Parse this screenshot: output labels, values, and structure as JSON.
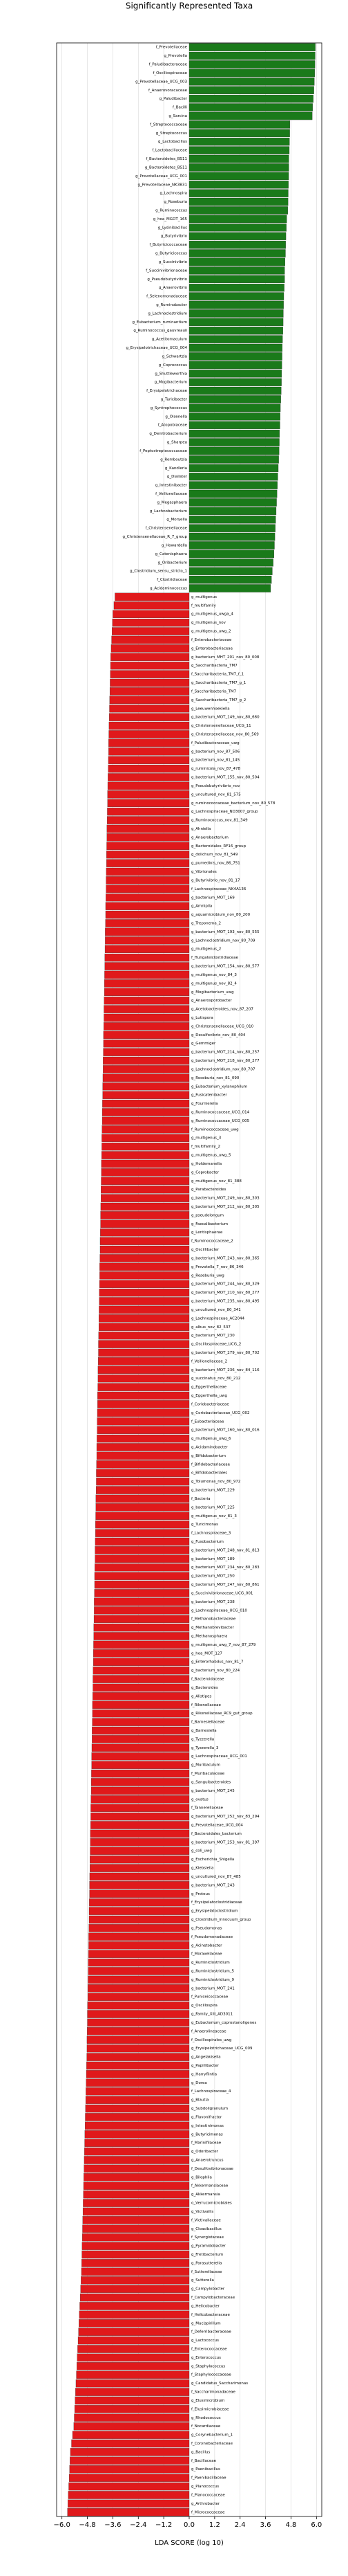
{
  "chart_data": {
    "type": "diverging-bar",
    "title": "Significantly Represented Taxa",
    "xlabel": "LDA SCORE (log 10)",
    "xlim": [
      -6.25,
      6.25
    ],
    "xticks": [
      {
        "value": -6,
        "label": "−6.0"
      },
      {
        "value": -4.8,
        "label": "−4.8"
      },
      {
        "value": -3.6,
        "label": "−3.6"
      },
      {
        "value": -2.4,
        "label": "−2.4"
      },
      {
        "value": -1.2,
        "label": "−1.2"
      },
      {
        "value": 0,
        "label": "0.0"
      },
      {
        "value": 1.2,
        "label": "1.2"
      },
      {
        "value": 2.4,
        "label": "2.4"
      },
      {
        "value": 3.6,
        "label": "3.6"
      },
      {
        "value": 4.8,
        "label": "4.8"
      },
      {
        "value": 6,
        "label": "6.0"
      }
    ],
    "grid": true,
    "series": [
      {
        "color": "#1a7a1a",
        "categories": [
          "f_Prevotellaceae",
          "g_Prevotella",
          "f_Paludibacteraceae",
          "f_Oscillospiraceae",
          "g_Prevotellaceae_UCG_003",
          "f_Anaerovoracaceae",
          "g_Paludibacter",
          "f_Bacilli",
          "g_Sarcina",
          "f_Streptococcaceae",
          "g_Streptococcus",
          "g_Lactobacillus",
          "f_Lactobacillaceae",
          "f_Bacteroidetes_BS11",
          "g_Bacteroidetes_BS11",
          "g_Prevotellaceae_UCG_001",
          "g_Prevotellaceae_NK3B31",
          "g_Lachnospira",
          "g_Roseburia",
          "g_Ruminococcus",
          "g_hoa_MGOT_165",
          "g_Lysinibacillus",
          "g_Butyrivibrio",
          "f_Butyricicoccaceae",
          "g_Butyricicoccus",
          "g_Succinivibrio",
          "f_Succinivibrionaceae",
          "g_Pseudobutyrivibrio",
          "g_Anaerovibrio",
          "f_Selenomonadaceae",
          "g_Ruminobacter",
          "g_Lachnoclostridium",
          "g_Eubacterium_ruminantium",
          "g_Ruminococcus_gauvreauii",
          "g_Acetitomaculum",
          "g_Erysipelotrichaceae_UCG_004",
          "g_Schwartzia",
          "g_Coprococcus",
          "g_Shuttleworthia",
          "g_Mogibacterium",
          "f_Erysipelotrichaceae",
          "g_Turicibacter",
          "g_Syntrophococcus",
          "g_Olsenella",
          "f_Atopobiaceae",
          "g_Denitrobacterium",
          "g_Sharpea",
          "f_Peptostreptococcaceae",
          "g_Romboutsia",
          "g_Kandleria",
          "g_Dialister",
          "g_Intestinibacter",
          "f_Veillonellaceae",
          "g_Megasphaera",
          "g_Lachnobacterium",
          "g_Moryella",
          "f_Christensenellaceae",
          "g_Christensenellaceae_R_7_group",
          "g_Howardella",
          "g_Catenisphaera",
          "g_Oribacterium",
          "g_Clostridium_sensu_stricto_1",
          "f_Clostridiaceae",
          "g_Acidaminococcus"
        ],
        "values": [
          5.95,
          5.94,
          5.93,
          5.92,
          5.9,
          5.88,
          5.85,
          5.82,
          5.8,
          4.75,
          4.74,
          4.73,
          4.72,
          4.7,
          4.7,
          4.69,
          4.68,
          4.67,
          4.66,
          4.65,
          4.6,
          4.58,
          4.56,
          4.55,
          4.54,
          4.52,
          4.5,
          4.5,
          4.48,
          4.46,
          4.45,
          4.44,
          4.43,
          4.42,
          4.4,
          4.39,
          4.38,
          4.37,
          4.36,
          4.35,
          4.34,
          4.32,
          4.3,
          4.29,
          4.28,
          4.26,
          4.25,
          4.24,
          4.22,
          4.2,
          4.18,
          4.16,
          4.14,
          4.12,
          4.1,
          4.08,
          4.06,
          4.04,
          4.02,
          4.0,
          3.96,
          3.92,
          3.88,
          3.84
        ]
      },
      {
        "color": "#e0191b",
        "categories": [
          "g_multigenus",
          "f_multifamily",
          "g_multigenus_uwga_4",
          "g_multigenus_nov",
          "g_multigenus_uwg_2",
          "f_Enterobacteriaceae",
          "g_Enterobacteriaceae",
          "g_bacterium_MHT_201_nov_80_008",
          "g_Saccharibacteria_TM7",
          "f_Saccharibacteria_TM7_f_1",
          "g_Saccharibacteria_TM7_g_1",
          "f_Saccharibacteria_TM7",
          "g_Saccharibacteria_TM7_g_2",
          "g_Leeuwenhoekiella",
          "g_bacterium_MOT_149_nov_80_660",
          "g_Christensenellaceae_UCG_11",
          "g_Christensenellaceae_nov_80_569",
          "f_Paludibacteraceae_uwg",
          "g_bacterium_nov_87_506",
          "g_bacterium_nov_81_145",
          "g_ruminicola_nov_87_478",
          "g_bacterium_MOT_155_nov_80_504",
          "g_Pseudobutyrivibrio_nov",
          "g_uncultured_nov_81_575",
          "g_ruminococcaceae_bacterium_nov_80_578",
          "g_Lachnospiraceae_ND3007_group",
          "g_Ruminococcus_nov_81_349",
          "g_Ahniella",
          "g_Anaerobacterium",
          "g_Bacteroidales_RF16_group",
          "g_dolichum_nov_81_549",
          "g_pumedinis_nov_86_751",
          "g_Vibrionales",
          "g_Butyrivibrio_nov_81_17",
          "f_Lachnospiraceae_NK4A136",
          "g_bacterium_MOT_169",
          "g_Amnipila",
          "g_aquamicrobium_nov_80_200",
          "g_Treponema_2",
          "g_bacterium_MOT_193_nov_80_555",
          "g_Lachnoclostridium_nov_80_709",
          "g_multigenus_2",
          "f_Hungateiclostridiaceae",
          "g_bacterium_MOT_154_nov_80_577",
          "g_multigenus_nov_84_3",
          "g_multigenus_nov_82_4",
          "g_Mogibacterium_uwg",
          "g_Anaerosporobacter",
          "g_Acetobacteroides_nov_87_207",
          "g_Lutispora",
          "g_Christensenellaceae_UCG_010",
          "g_Desulfovibrio_nov_80_404",
          "g_Gemmiger",
          "g_bacterium_MOT_214_nov_80_257",
          "g_bacterium_MOT_218_nov_80_277",
          "g_Lachnoclostridium_nov_80_707",
          "g_Roseburia_nov_81_090",
          "g_Eubacterium_xylanophilum",
          "g_Fusicatenibacter",
          "g_Fournierella",
          "g_Ruminococcaceae_UCG_014",
          "g_Ruminococcaceae_UCG_005",
          "f_Ruminococcaceae_uwg",
          "g_multigenus_3",
          "f_multifamily_2",
          "g_multigenus_uwg_5",
          "g_Holdemanella",
          "g_Coprobacter",
          "g_multigenus_nov_81_388",
          "g_Parabacteroides",
          "g_bacterium_MOT_249_nov_80_303",
          "g_bacterium_MOT_212_nov_80_305",
          "g_pseudolongum",
          "g_Faecalibacterium",
          "g_Lentisphaerae",
          "f_Ruminococcaceae_2",
          "g_Oscillibacter",
          "g_bacterium_MOT_243_nov_80_365",
          "g_Prevotella_7_nov_86_346",
          "g_Roseburia_uwg",
          "g_bacterium_MOT_244_nov_80_329",
          "g_bacterium_MOT_210_nov_80_277",
          "g_bacterium_MOT_235_nov_80_495",
          "g_uncultured_nov_80_341",
          "g_Lachnospiraceae_AC2044",
          "g_albus_nov_82_537",
          "g_bacterium_MOT_230",
          "g_Oscillospiraceae_UCG_2",
          "g_bacterium_MOT_279_nov_80_702",
          "f_Veillonellaceae_2",
          "g_bacterium_MOT_236_nov_84_116",
          "g_succinatus_nov_80_212",
          "g_Eggerthellaceae",
          "g_Eggerthella_uwg",
          "f_Coriobacteriaceae",
          "g_Coriobacteriaceae_UCG_002",
          "f_Eubacteriaceae",
          "g_bacterium_MOT_160_nov_80_016",
          "g_multigenus_uwg_6",
          "g_Acidaminobacter",
          "g_Bifidobacterium",
          "f_Bifidobacteriaceae",
          "o_Bifidobacteriales",
          "g_Tolumonas_nov_80_972",
          "g_bacterium_MOT_229",
          "f_Bacteria",
          "g_bacterium_MOT_225",
          "g_multigenus_nov_81_3",
          "g_Turicimonas",
          "f_Lachnospiraceae_3",
          "g_Fusobacterium",
          "g_bacterium_MOT_248_nov_81_813",
          "g_bacterium_MOT_189",
          "g_bacterium_MOT_234_nov_80_283",
          "g_bacterium_MOT_250",
          "g_bacterium_MOT_247_nov_80_861",
          "g_Succinivibrionaceae_UCG_001",
          "g_bacterium_MOT_238",
          "g_Lachnospiraceae_UCG_010",
          "f_Methanobacteriaceae",
          "g_Methanobrevibacter",
          "g_Methanosphaera",
          "g_multigenus_uwg_7_nov_87_279",
          "g_hoa_MOT_127",
          "g_Enterorhabdus_nov_81_7",
          "g_bacterium_nov_80_224",
          "f_Bacteroidaceae",
          "g_Bacteroides",
          "g_Alistipes",
          "f_Rikenellaceae",
          "g_Rikenellaceae_RC9_gut_group",
          "f_Barnesiellaceae",
          "g_Barnesiella",
          "g_Tyzzerella",
          "g_Tyzzerella_3",
          "g_Lachnospiraceae_UCG_001",
          "g_Muribaculum",
          "f_Muribaculaceae",
          "g_Sanguibacteroides",
          "g_bacterium_MOT_245",
          "g_ovatus",
          "f_Tannerellaceae",
          "g_bacterium_MOT_252_nov_83_294",
          "g_Prevotellaceae_UCG_004",
          "f_Bacteroidales_bacterium",
          "g_bacterium_MOT_253_nov_81_397",
          "g_coli_uwg",
          "g_Escherichia_Shigella",
          "g_Klebsiella",
          "g_uncultured_nov_87_485",
          "g_bacterium_MOT_243",
          "g_Proteus",
          "f_Erysipelatoclostridiaceae",
          "g_Erysipelatoclostridium",
          "g_Clostridium_innocuum_group",
          "g_Pseudomonas",
          "f_Pseudomonadaceae",
          "g_Acinetobacter",
          "f_Moraxellaceae",
          "g_Ruminiclostridium",
          "g_Ruminiclostridium_5",
          "g_Ruminiclostridium_9",
          "g_bacterium_MOT_241",
          "f_Puniceicoccaceae",
          "g_Oscillospira",
          "g_Family_XIII_AD3011",
          "g_Eubacterium_coprostanoligenes",
          "f_Anaerolineaceae",
          "f_Oscillospirales_uwg",
          "g_Erysipelotrichaceae_UCG_009",
          "g_Angelakisella",
          "g_Papillibacter",
          "g_Harryflintia",
          "g_Dorea",
          "f_Lachnospiraceae_4",
          "g_Blautia",
          "g_Subdoligranulum",
          "g_Flavonifractor",
          "g_Intestinimonas",
          "g_Butyricimonas",
          "f_Marinifilaceae",
          "g_Odoribacter",
          "g_Anaerotruncus",
          "f_Desulfovibrionaceae",
          "g_Bilophila",
          "f_Akkermansiaceae",
          "g_Akkermansia",
          "o_Verrucomicrobiales",
          "g_Victivallis",
          "f_Victivallaceae",
          "g_Cloacibacillus",
          "f_Synergistaceae",
          "g_Pyramidobacter",
          "g_Fretibacterium",
          "g_Parasutterella",
          "f_Sutterellaceae",
          "g_Sutterella",
          "g_Campylobacter",
          "f_Campylobacteraceae",
          "g_Helicobacter",
          "f_Helicobacteraceae",
          "g_Mucispirillum",
          "f_Deferribacteraceae",
          "g_Lactococcus",
          "f_Enterococcaceae",
          "g_Enterococcus",
          "g_Staphylococcus",
          "f_Staphylococcaceae",
          "g_Candidatus_Saccharimonas",
          "f_Saccharimonadaceae",
          "g_Elusimicrobium",
          "f_Elusimicrobiaceae",
          "g_Rhodococcus",
          "f_Nocardiaceae",
          "g_Corynebacterium_1",
          "f_Corynebacteriaceae",
          "g_Bacillus",
          "f_Bacillaceae",
          "g_Paenibacillus",
          "f_Paenibacillaceae",
          "g_Planococcus",
          "f_Planococcaceae",
          "g_Arthrobacter",
          "f_Micrococcaceae"
        ],
        "values": [
          -3.5,
          -3.55,
          -3.6,
          -3.62,
          -3.64,
          -3.66,
          -3.68,
          -3.7,
          -3.71,
          -3.72,
          -3.73,
          -3.74,
          -3.75,
          -3.76,
          -3.77,
          -3.78,
          -3.79,
          -3.8,
          -3.8,
          -3.81,
          -3.82,
          -3.83,
          -3.84,
          -3.85,
          -3.85,
          -3.86,
          -3.87,
          -3.88,
          -3.88,
          -3.89,
          -3.9,
          -3.9,
          -3.91,
          -3.92,
          -3.92,
          -3.93,
          -3.94,
          -3.94,
          -3.95,
          -3.96,
          -3.96,
          -3.97,
          -3.98,
          -3.98,
          -3.99,
          -4.0,
          -4.0,
          -4.01,
          -4.02,
          -4.02,
          -4.03,
          -4.04,
          -4.04,
          -4.05,
          -4.06,
          -4.06,
          -4.07,
          -4.08,
          -4.08,
          -4.09,
          -4.1,
          -4.1,
          -4.11,
          -4.12,
          -4.12,
          -4.13,
          -4.14,
          -4.14,
          -4.15,
          -4.16,
          -4.16,
          -4.17,
          -4.18,
          -4.18,
          -4.19,
          -4.2,
          -4.2,
          -4.21,
          -4.22,
          -4.22,
          -4.23,
          -4.24,
          -4.24,
          -4.25,
          -4.26,
          -4.26,
          -4.27,
          -4.28,
          -4.28,
          -4.29,
          -4.3,
          -4.3,
          -4.31,
          -4.32,
          -4.32,
          -4.33,
          -4.34,
          -4.34,
          -4.35,
          -4.36,
          -4.36,
          -4.37,
          -4.38,
          -4.38,
          -4.39,
          -4.4,
          -4.4,
          -4.41,
          -4.42,
          -4.42,
          -4.43,
          -4.44,
          -4.44,
          -4.45,
          -4.46,
          -4.46,
          -4.47,
          -4.48,
          -4.48,
          -4.49,
          -4.5,
          -4.5,
          -4.51,
          -4.52,
          -4.52,
          -4.53,
          -4.54,
          -4.54,
          -4.55,
          -4.56,
          -4.56,
          -4.57,
          -4.58,
          -4.58,
          -4.59,
          -4.6,
          -4.6,
          -4.61,
          -4.62,
          -4.62,
          -4.63,
          -4.64,
          -4.64,
          -4.65,
          -4.66,
          -4.66,
          -4.67,
          -4.68,
          -4.68,
          -4.69,
          -4.7,
          -4.7,
          -4.71,
          -4.72,
          -4.72,
          -4.73,
          -4.74,
          -4.74,
          -4.75,
          -4.76,
          -4.76,
          -4.77,
          -4.78,
          -4.78,
          -4.79,
          -4.8,
          -4.8,
          -4.81,
          -4.82,
          -4.82,
          -4.83,
          -4.84,
          -4.85,
          -4.86,
          -4.87,
          -4.88,
          -4.89,
          -4.9,
          -4.91,
          -4.92,
          -4.93,
          -4.94,
          -4.95,
          -4.96,
          -4.97,
          -4.98,
          -4.99,
          -5.0,
          -5.01,
          -5.02,
          -5.03,
          -5.04,
          -5.05,
          -5.06,
          -5.07,
          -5.08,
          -5.1,
          -5.12,
          -5.14,
          -5.16,
          -5.18,
          -5.2,
          -5.22,
          -5.24,
          -5.26,
          -5.28,
          -5.3,
          -5.32,
          -5.34,
          -5.36,
          -5.38,
          -5.4,
          -5.42,
          -5.44,
          -5.5,
          -5.55,
          -5.6,
          -5.62,
          -5.64,
          -5.66,
          -5.68,
          -5.7,
          -5.72,
          -5.74
        ]
      }
    ]
  }
}
